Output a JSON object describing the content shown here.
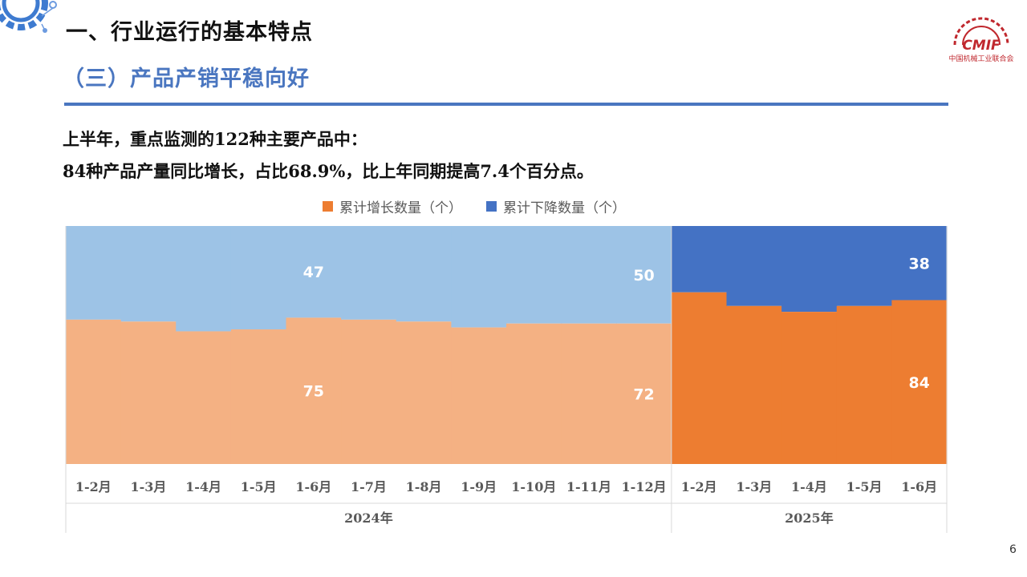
{
  "header": {
    "title": "一、行业运行的基本特点",
    "subtitle": "（三）产品产销平稳向好",
    "logo_text": "CMIF",
    "logo_subtext": "中国机械工业联合会"
  },
  "body": {
    "line1": "上半年，重点监测的122种主要产品中：",
    "line2": "84种产品产量同比增长，占比68.9%，比上年同期提高7.4个百分点。"
  },
  "legend": {
    "increase": "累计增长数量（个）",
    "decrease": "累计下降数量（个）"
  },
  "colors": {
    "accent_blue": "#4A76C0",
    "increase_2024": "#F4B183",
    "decrease_2024": "#9DC3E6",
    "increase_2025": "#ED7D31",
    "decrease_2025": "#4472C4",
    "logo_red": "#C0282E"
  },
  "chart_data": {
    "type": "area",
    "stacked": true,
    "categories": [
      "1-2月",
      "1-3月",
      "1-4月",
      "1-5月",
      "1-6月",
      "1-7月",
      "1-8月",
      "1-9月",
      "1-10月",
      "1-11月",
      "1-12月",
      "1-2月",
      "1-3月",
      "1-4月",
      "1-5月",
      "1-6月"
    ],
    "groups": [
      {
        "label": "2024年",
        "count": 11
      },
      {
        "label": "2025年",
        "count": 5
      }
    ],
    "series": [
      {
        "name": "累计增长数量（个）",
        "values": [
          74,
          73,
          68,
          69,
          75,
          74,
          73,
          70,
          72,
          72,
          72,
          88,
          81,
          78,
          81,
          84
        ]
      },
      {
        "name": "累计下降数量（个）",
        "values": [
          48,
          49,
          54,
          53,
          47,
          48,
          49,
          52,
          50,
          50,
          50,
          34,
          41,
          44,
          41,
          38
        ]
      }
    ],
    "total": 122,
    "data_labels": [
      {
        "index": 4,
        "increase": "75",
        "decrease": "47"
      },
      {
        "index": 10,
        "increase": "72",
        "decrease": "50"
      },
      {
        "index": 15,
        "increase": "84",
        "decrease": "38"
      }
    ],
    "legend_position": "top",
    "grid": false
  },
  "footer": {
    "page_number": "6"
  }
}
